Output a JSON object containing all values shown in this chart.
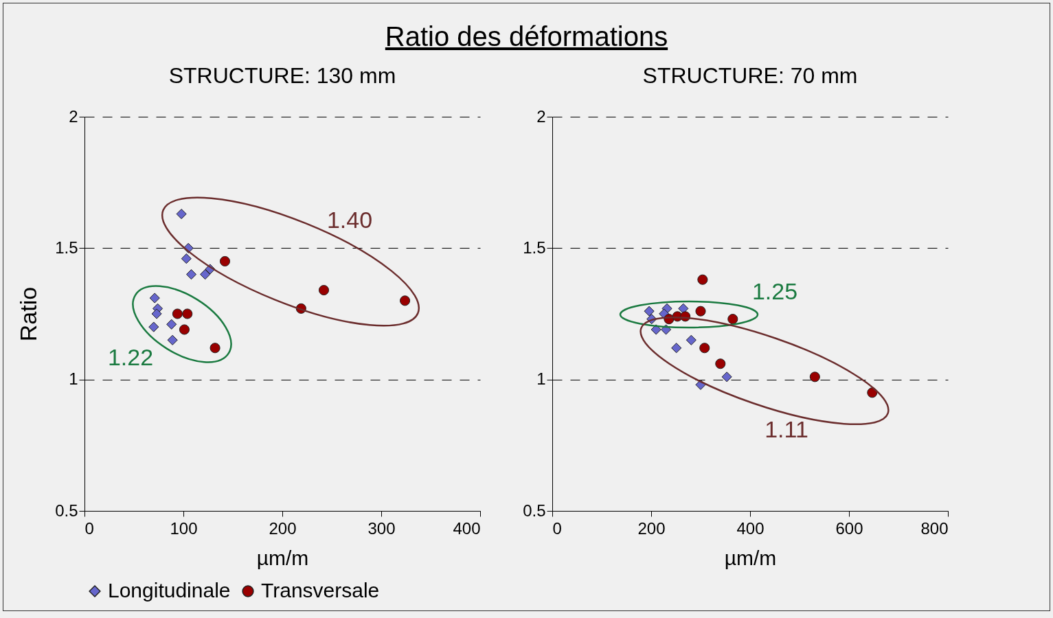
{
  "chart_data": [
    {
      "type": "scatter",
      "title": "Ratio des déformations",
      "subtitle": "STRUCTURE: 130 mm",
      "xlabel": "µm/m",
      "ylabel": "Ratio",
      "xlim": [
        0,
        400
      ],
      "xticks": [
        0,
        100,
        200,
        300,
        400
      ],
      "ylim": [
        0.5,
        2
      ],
      "yticks": [
        0.5,
        1,
        1.5,
        2
      ],
      "grid": "y",
      "legend": "bottom",
      "series": [
        {
          "name": "Longitudinale",
          "color": "#6666cc",
          "marker": "diamond",
          "x": [
            98,
            105,
            103,
            108,
            122,
            127,
            71,
            74,
            73,
            70,
            88,
            89
          ],
          "values": [
            1.63,
            1.5,
            1.46,
            1.4,
            1.4,
            1.42,
            1.31,
            1.27,
            1.25,
            1.2,
            1.21,
            1.15
          ]
        },
        {
          "name": "Transversale",
          "color": "#990000",
          "marker": "circle",
          "x": [
            142,
            242,
            219,
            324,
            94,
            104,
            101,
            132
          ],
          "values": [
            1.45,
            1.34,
            1.27,
            1.3,
            1.25,
            1.25,
            1.19,
            1.12
          ]
        }
      ],
      "annotations": [
        "1.40",
        "1.22"
      ]
    },
    {
      "type": "scatter",
      "subtitle": "STRUCTURE: 70 mm",
      "xlabel": "µm/m",
      "xlim": [
        0,
        800
      ],
      "xticks": [
        0,
        200,
        400,
        600,
        800
      ],
      "ylim": [
        0.5,
        2
      ],
      "yticks": [
        0.5,
        1,
        1.5,
        2
      ],
      "grid": "y",
      "legend": "bottom",
      "series": [
        {
          "name": "Longitudinale",
          "color": "#6666cc",
          "marker": "diamond",
          "x": [
            196,
            232,
            226,
            265,
            201,
            210,
            230,
            281,
            251,
            353,
            300
          ],
          "values": [
            1.26,
            1.27,
            1.25,
            1.27,
            1.23,
            1.19,
            1.19,
            1.15,
            1.12,
            1.01,
            0.98
          ]
        },
        {
          "name": "Transversale",
          "color": "#990000",
          "marker": "circle",
          "x": [
            304,
            300,
            365,
            236,
            253,
            269,
            308,
            340,
            531,
            647
          ],
          "values": [
            1.38,
            1.26,
            1.23,
            1.23,
            1.24,
            1.24,
            1.12,
            1.06,
            1.01,
            0.95
          ]
        }
      ],
      "annotations": [
        "1.25",
        "1.11"
      ]
    }
  ]
}
